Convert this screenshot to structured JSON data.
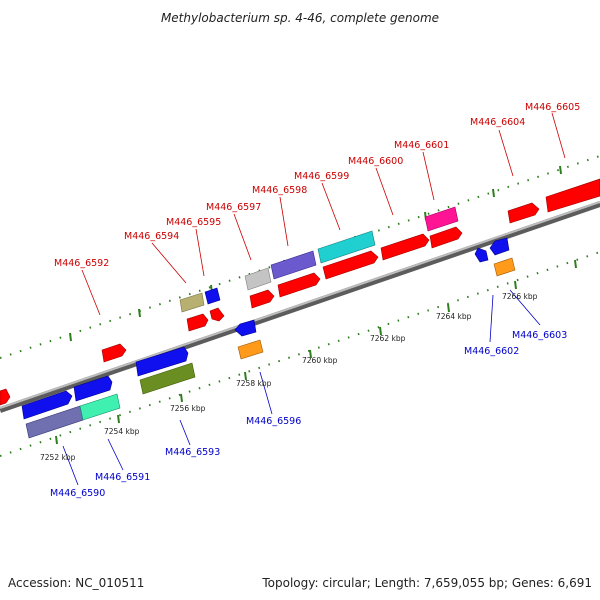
{
  "title": "Methylobacterium sp. 4-46, complete genome",
  "accession": "Accession: NC_010511",
  "summary": "Topology: circular; Length: 7,659,055 bp; Genes: 6,691",
  "colors": {
    "background": "#ffffff",
    "backbone": "#8a8a8a",
    "tick": "#2e7d1e",
    "top_label": "#cc0000",
    "bottom_label": "#0000cc",
    "label_line_top": "#cc0000",
    "label_line_bottom": "#0000cc"
  },
  "kbp_labels": [
    "7252 kbp",
    "7254 kbp",
    "7256 kbp",
    "7258 kbp",
    "7260 kbp",
    "7262 kbp",
    "7264 kbp",
    "7266 kbp"
  ],
  "top_gene_labels": [
    "M446_6592",
    "M446_6594",
    "M446_6595",
    "M446_6597",
    "M446_6598",
    "M446_6599",
    "M446_6600",
    "M446_6601",
    "M446_6604",
    "M446_6605"
  ],
  "bottom_gene_labels": [
    "M446_6590",
    "M446_6591",
    "M446_6593",
    "M446_6596",
    "M446_6602",
    "M446_6603"
  ]
}
